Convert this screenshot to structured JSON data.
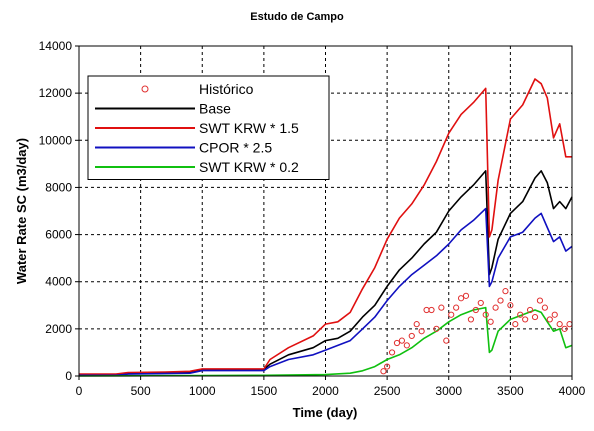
{
  "chart_data": {
    "type": "line",
    "title": "Estudo de Campo",
    "xlabel": "Time (day)",
    "ylabel": "Water Rate SC (m3/day)",
    "xlim": [
      0,
      4000
    ],
    "ylim": [
      0,
      14000
    ],
    "x_ticks": [
      "0",
      "500",
      "1000",
      "1500",
      "2000",
      "2500",
      "3000",
      "3500",
      "4000"
    ],
    "y_ticks": [
      "0",
      "2000",
      "4000",
      "6000",
      "8000",
      "10000",
      "12000",
      "14000"
    ],
    "grid": true,
    "legend_position": "top-left",
    "series": [
      {
        "name": "Histórico",
        "style": "markers",
        "color": "#e03030",
        "x": [
          2470,
          2500,
          2540,
          2580,
          2620,
          2660,
          2700,
          2740,
          2780,
          2820,
          2860,
          2900,
          2940,
          2980,
          3020,
          3060,
          3100,
          3140,
          3180,
          3220,
          3260,
          3300,
          3340,
          3380,
          3420,
          3460,
          3500,
          3540,
          3580,
          3620,
          3660,
          3700,
          3740,
          3780,
          3820,
          3860,
          3900,
          3940,
          3980
        ],
        "y": [
          200,
          400,
          1000,
          1400,
          1500,
          1300,
          1700,
          2200,
          1900,
          2800,
          2800,
          2000,
          2900,
          1500,
          2600,
          2900,
          3300,
          3400,
          2400,
          2800,
          3100,
          2600,
          2300,
          2900,
          3200,
          3600,
          3000,
          2200,
          2600,
          2400,
          2800,
          2500,
          3200,
          2900,
          2400,
          2600,
          2200,
          2000,
          2200
        ]
      },
      {
        "name": "Base",
        "color": "#000000",
        "x": [
          0,
          300,
          400,
          700,
          900,
          1000,
          1500,
          1550,
          1700,
          1900,
          2000,
          2100,
          2200,
          2300,
          2400,
          2500,
          2600,
          2700,
          2800,
          2900,
          3000,
          3100,
          3200,
          3300,
          3330,
          3350,
          3400,
          3500,
          3600,
          3700,
          3750,
          3800,
          3850,
          3900,
          3950,
          4000
        ],
        "y": [
          50,
          50,
          100,
          120,
          150,
          280,
          280,
          500,
          900,
          1200,
          1500,
          1600,
          1900,
          2500,
          3000,
          3800,
          4500,
          5000,
          5600,
          6100,
          7000,
          7600,
          8100,
          8700,
          4300,
          4600,
          5800,
          6900,
          7400,
          8400,
          8700,
          8200,
          7100,
          7400,
          7100,
          7600
        ]
      },
      {
        "name": "SWT KRW * 1.5",
        "color": "#e01010",
        "x": [
          0,
          300,
          400,
          700,
          900,
          1000,
          1500,
          1550,
          1700,
          1900,
          2000,
          2100,
          2200,
          2300,
          2400,
          2500,
          2600,
          2700,
          2800,
          2900,
          3000,
          3100,
          3200,
          3300,
          3330,
          3350,
          3400,
          3500,
          3600,
          3700,
          3750,
          3800,
          3850,
          3900,
          3950,
          4000
        ],
        "y": [
          80,
          80,
          150,
          170,
          200,
          300,
          300,
          700,
          1200,
          1700,
          2200,
          2300,
          2700,
          3700,
          4600,
          5800,
          6700,
          7300,
          8100,
          9100,
          10300,
          11100,
          11600,
          12200,
          5900,
          6200,
          8300,
          10900,
          11500,
          12600,
          12400,
          11800,
          10100,
          10700,
          9300,
          9300
        ]
      },
      {
        "name": "CPOR * 2.5",
        "color": "#1010c0",
        "x": [
          0,
          300,
          400,
          700,
          900,
          1000,
          1500,
          1550,
          1700,
          1900,
          2000,
          2100,
          2200,
          2300,
          2400,
          2500,
          2600,
          2700,
          2800,
          2900,
          3000,
          3100,
          3200,
          3300,
          3330,
          3350,
          3400,
          3500,
          3600,
          3700,
          3750,
          3800,
          3850,
          3900,
          3950,
          4000
        ],
        "y": [
          30,
          30,
          80,
          100,
          120,
          230,
          230,
          400,
          700,
          900,
          1100,
          1300,
          1500,
          2000,
          2500,
          3200,
          3800,
          4300,
          4700,
          5100,
          5600,
          6200,
          6600,
          7100,
          3800,
          4000,
          5000,
          5900,
          6100,
          6700,
          6900,
          6300,
          5700,
          5900,
          5300,
          5500
        ]
      },
      {
        "name": "SWT KRW * 0.2",
        "color": "#10c010",
        "x": [
          0,
          1000,
          1500,
          2000,
          2200,
          2300,
          2400,
          2450,
          2500,
          2600,
          2700,
          2800,
          2900,
          3000,
          3100,
          3200,
          3300,
          3330,
          3350,
          3400,
          3500,
          3600,
          3700,
          3750,
          3800,
          3850,
          3900,
          3950,
          4000
        ],
        "y": [
          0,
          20,
          30,
          60,
          120,
          220,
          400,
          550,
          700,
          900,
          1200,
          1600,
          1900,
          2300,
          2600,
          2800,
          2900,
          1000,
          1100,
          1900,
          2400,
          2600,
          2800,
          2700,
          2300,
          1900,
          2000,
          1200,
          1300
        ]
      }
    ]
  }
}
